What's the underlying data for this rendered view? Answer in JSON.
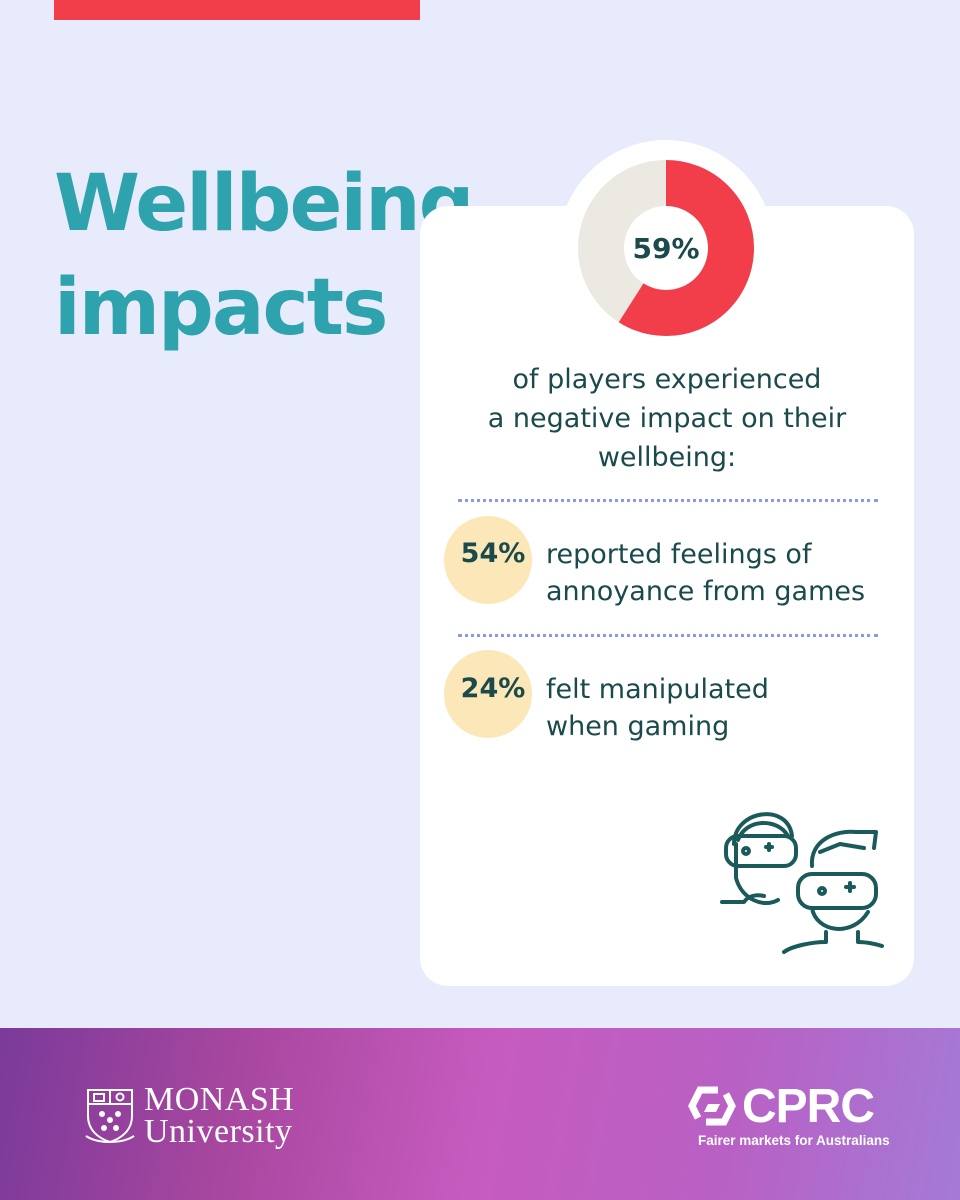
{
  "headline": {
    "line1": "Wellbeing",
    "line2": "impacts"
  },
  "main_stat": {
    "percent_label": "59%",
    "value": 59,
    "filled_color": "#f23d4b",
    "remainder_color": "#ebe9e1",
    "description_lines": [
      "of players experienced",
      "a negative impact on their",
      "wellbeing:"
    ]
  },
  "sub_stats": [
    {
      "percent_label": "54%",
      "description_lines": [
        "reported feelings of",
        "annoyance from games"
      ]
    },
    {
      "percent_label": "24%",
      "description_lines": [
        "felt manipulated",
        "when gaming"
      ]
    }
  ],
  "illustration": {
    "icon": "gamers-with-vr-goggles-icon"
  },
  "footer": {
    "monash": {
      "line1": "MONASH",
      "line2": "University",
      "crest_icon": "monash-crest-icon"
    },
    "cprc": {
      "name": "CPRC",
      "tagline": "Fairer markets for Australians",
      "logo_icon": "cprc-logo-icon"
    }
  },
  "colors": {
    "background": "#e8ebfb",
    "accent_red": "#f23d4b",
    "headline_teal": "#2fa3ad",
    "text_dark_teal": "#1b4a4c",
    "stat_circle": "#fbe7b7",
    "divider": "#8e97e6"
  }
}
